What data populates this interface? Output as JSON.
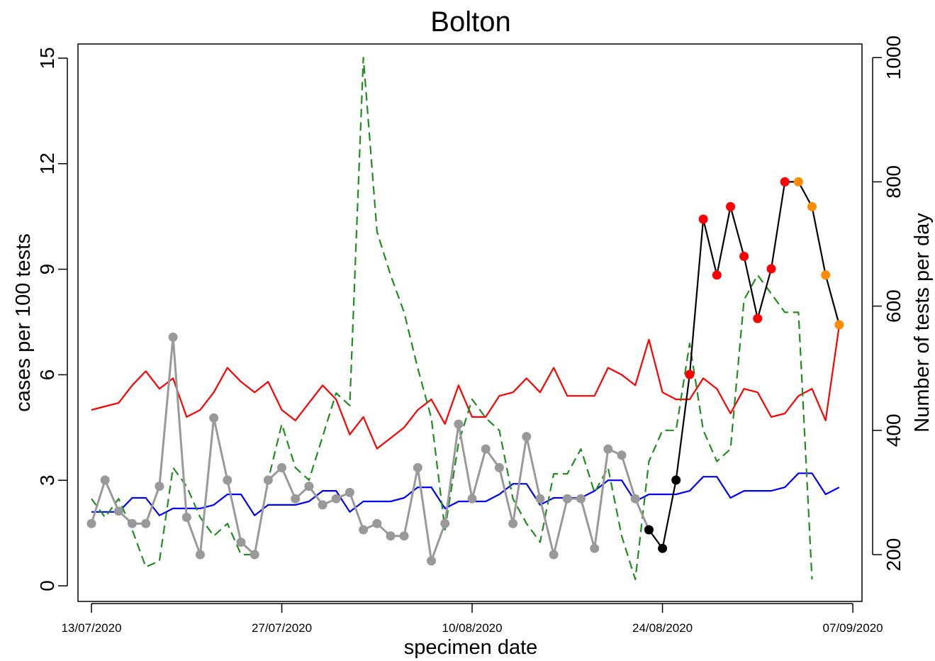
{
  "chart_data": {
    "type": "line",
    "title": "Bolton",
    "xlabel": "specimen date",
    "ylabel": "cases per 100 tests",
    "y2label": "Number of tests per day",
    "x_start": "13/07/2020",
    "x_tick_labels": [
      "13/07/2020",
      "27/07/2020",
      "10/08/2020",
      "24/08/2020",
      "07/09/2020"
    ],
    "ylim": [
      0,
      15
    ],
    "y_ticks": [
      0,
      3,
      6,
      9,
      12,
      15
    ],
    "y2lim": [
      140,
      1000
    ],
    "y2_ticks": [
      200,
      400,
      600,
      800,
      1000
    ],
    "grid": false,
    "series": [
      {
        "color": "#ff0000",
        "style": "solid",
        "values": [
          5.0,
          5.1,
          5.2,
          5.7,
          6.1,
          5.6,
          5.9,
          4.8,
          5.0,
          5.5,
          6.2,
          5.8,
          5.5,
          5.8,
          5.0,
          4.7,
          5.2,
          5.7,
          5.3,
          4.3,
          4.8,
          3.9,
          4.2,
          4.5,
          5.0,
          5.3,
          4.6,
          5.7,
          4.8,
          4.8,
          5.4,
          5.5,
          5.9,
          5.5,
          6.2,
          5.4,
          5.4,
          5.4,
          6.2,
          6.0,
          5.7,
          7.0,
          5.5,
          5.3,
          5.3,
          5.9,
          5.6,
          4.9,
          5.6,
          5.5,
          4.8,
          4.9,
          5.4,
          5.6,
          4.7,
          7.4
        ]
      },
      {
        "color": "#0000ff",
        "style": "solid",
        "values": [
          2.1,
          2.1,
          2.1,
          2.5,
          2.5,
          2.0,
          2.2,
          2.2,
          2.2,
          2.3,
          2.6,
          2.6,
          2.0,
          2.3,
          2.3,
          2.3,
          2.4,
          2.7,
          2.7,
          2.1,
          2.4,
          2.4,
          2.4,
          2.5,
          2.8,
          2.8,
          2.2,
          2.4,
          2.4,
          2.4,
          2.6,
          2.9,
          2.9,
          2.3,
          2.5,
          2.5,
          2.5,
          2.7,
          3.0,
          3.0,
          2.4,
          2.6,
          2.6,
          2.6,
          2.7,
          3.1,
          3.1,
          2.5,
          2.7,
          2.7,
          2.7,
          2.8,
          3.2,
          3.2,
          2.6,
          2.8
        ]
      },
      {
        "color": "#228b22",
        "style": "dashed",
        "axis": "right",
        "values": [
          290,
          260,
          290,
          240,
          180,
          190,
          340,
          310,
          260,
          230,
          250,
          200,
          200,
          320,
          410,
          340,
          320,
          390,
          460,
          440,
          1000,
          720,
          650,
          590,
          500,
          420,
          240,
          380,
          450,
          420,
          400,
          290,
          250,
          220,
          330,
          330,
          370,
          300,
          340,
          230,
          160,
          350,
          400,
          400,
          540,
          400,
          350,
          370,
          610,
          650,
          620,
          590,
          590,
          160,
          null,
          null
        ]
      },
      {
        "color": "#999999",
        "style": "solid",
        "markers": true,
        "axis": "right",
        "values": [
          250,
          320,
          270,
          250,
          250,
          310,
          550,
          260,
          200,
          420,
          320,
          220,
          200,
          320,
          340,
          290,
          310,
          280,
          290,
          300,
          240,
          250,
          230,
          230,
          340,
          190,
          250,
          410,
          290,
          370,
          340,
          250,
          390,
          290,
          200,
          290,
          290,
          210,
          370,
          360,
          290,
          240
        ]
      },
      {
        "color": "#000000",
        "style": "solid",
        "axis": "right",
        "values": [
          null,
          null,
          null,
          null,
          null,
          null,
          null,
          null,
          null,
          null,
          null,
          null,
          null,
          null,
          null,
          null,
          null,
          null,
          null,
          null,
          null,
          null,
          null,
          null,
          null,
          null,
          null,
          null,
          null,
          null,
          null,
          null,
          null,
          null,
          null,
          null,
          null,
          null,
          null,
          null,
          null,
          240,
          210,
          320,
          490,
          740,
          650,
          760,
          680,
          580,
          660,
          800,
          800,
          760,
          650,
          570
        ]
      },
      {
        "color": "#ff0000",
        "style": "markers",
        "axis": "right",
        "values": [
          null,
          null,
          null,
          null,
          null,
          null,
          null,
          null,
          null,
          null,
          null,
          null,
          null,
          null,
          null,
          null,
          null,
          null,
          null,
          null,
          null,
          null,
          null,
          null,
          null,
          null,
          null,
          null,
          null,
          null,
          null,
          null,
          null,
          null,
          null,
          null,
          null,
          null,
          null,
          null,
          null,
          null,
          null,
          null,
          490,
          740,
          650,
          760,
          680,
          580,
          660,
          800,
          null,
          null,
          null,
          null
        ]
      },
      {
        "color": "#ff8c00",
        "style": "markers",
        "axis": "right",
        "values": [
          null,
          null,
          null,
          null,
          null,
          null,
          null,
          null,
          null,
          null,
          null,
          null,
          null,
          null,
          null,
          null,
          null,
          null,
          null,
          null,
          null,
          null,
          null,
          null,
          null,
          null,
          null,
          null,
          null,
          null,
          null,
          null,
          null,
          null,
          null,
          null,
          null,
          null,
          null,
          null,
          null,
          null,
          null,
          null,
          null,
          null,
          null,
          null,
          null,
          null,
          null,
          null,
          800,
          760,
          650,
          570
        ]
      }
    ]
  }
}
